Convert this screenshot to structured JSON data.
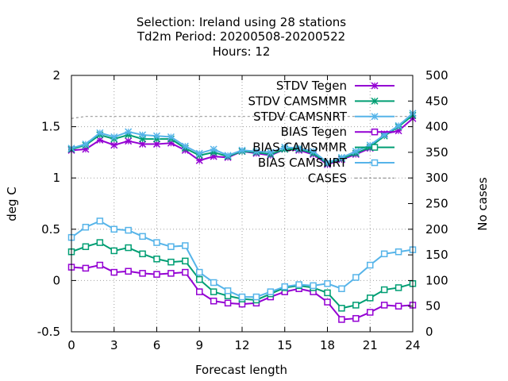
{
  "chart_data": {
    "type": "line",
    "title_lines": [
      "Selection: Ireland using    28 stations",
      "Td2m   Period: 20200508-20200522",
      "Hours:  12"
    ],
    "xlabel": "Forecast length",
    "ylabel": "deg C",
    "y2label": "No cases",
    "xlim": [
      0,
      24
    ],
    "ylim": [
      -0.5,
      2
    ],
    "y2lim": [
      0,
      500
    ],
    "xticks": [
      0,
      3,
      6,
      9,
      12,
      15,
      18,
      21,
      24
    ],
    "yticks": [
      -0.5,
      0,
      0.5,
      1,
      1.5,
      2
    ],
    "ytick_labels": [
      "-0.5",
      "0",
      "0.5",
      "1",
      "1.5",
      "2"
    ],
    "y2ticks": [
      0,
      50,
      100,
      150,
      200,
      250,
      300,
      350,
      400,
      450,
      500
    ],
    "grid": true,
    "legend_position": "top-right",
    "x": [
      0,
      1,
      2,
      3,
      4,
      5,
      6,
      7,
      8,
      9,
      10,
      11,
      12,
      13,
      14,
      15,
      16,
      17,
      18,
      19,
      20,
      21,
      22,
      23,
      24
    ],
    "series": [
      {
        "name": "STDV Tegen",
        "color": "#9400d3",
        "marker": "x",
        "axis": "y1",
        "values": [
          1.27,
          1.28,
          1.37,
          1.32,
          1.36,
          1.33,
          1.33,
          1.34,
          1.27,
          1.17,
          1.21,
          1.2,
          1.26,
          1.24,
          1.22,
          1.28,
          1.27,
          1.23,
          1.13,
          1.18,
          1.23,
          1.29,
          1.43,
          1.46,
          1.58
        ]
      },
      {
        "name": "STDV CAMSMMR",
        "color": "#009e73",
        "marker": "x",
        "axis": "y1",
        "values": [
          1.28,
          1.32,
          1.42,
          1.38,
          1.42,
          1.38,
          1.38,
          1.38,
          1.29,
          1.22,
          1.25,
          1.21,
          1.26,
          1.25,
          1.23,
          1.28,
          1.28,
          1.24,
          1.14,
          1.19,
          1.24,
          1.3,
          1.41,
          1.5,
          1.61
        ]
      },
      {
        "name": "STDV CAMSNRT",
        "color": "#56b4e9",
        "marker": "x",
        "axis": "y1",
        "values": [
          1.29,
          1.33,
          1.44,
          1.4,
          1.45,
          1.42,
          1.41,
          1.4,
          1.31,
          1.24,
          1.28,
          1.22,
          1.27,
          1.26,
          1.25,
          1.3,
          1.29,
          1.26,
          1.15,
          1.2,
          1.26,
          1.32,
          1.42,
          1.51,
          1.63
        ]
      },
      {
        "name": "BIAS Tegen",
        "color": "#9400d3",
        "marker": "square",
        "axis": "y1",
        "values": [
          0.13,
          0.12,
          0.15,
          0.08,
          0.09,
          0.07,
          0.06,
          0.07,
          0.08,
          -0.11,
          -0.2,
          -0.22,
          -0.23,
          -0.22,
          -0.16,
          -0.11,
          -0.08,
          -0.11,
          -0.21,
          -0.38,
          -0.37,
          -0.31,
          -0.24,
          -0.25,
          -0.24
        ]
      },
      {
        "name": "BIAS CAMSMMR",
        "color": "#009e73",
        "marker": "square",
        "axis": "y1",
        "values": [
          0.28,
          0.33,
          0.37,
          0.29,
          0.32,
          0.26,
          0.21,
          0.18,
          0.19,
          0.01,
          -0.11,
          -0.15,
          -0.18,
          -0.19,
          -0.13,
          -0.07,
          -0.05,
          -0.07,
          -0.12,
          -0.27,
          -0.24,
          -0.17,
          -0.09,
          -0.07,
          -0.03
        ]
      },
      {
        "name": "BIAS CAMSNRT",
        "color": "#56b4e9",
        "marker": "square",
        "axis": "y1",
        "values": [
          0.42,
          0.52,
          0.58,
          0.5,
          0.49,
          0.43,
          0.37,
          0.33,
          0.34,
          0.08,
          -0.02,
          -0.1,
          -0.16,
          -0.16,
          -0.11,
          -0.06,
          -0.04,
          -0.05,
          -0.03,
          -0.08,
          0.03,
          0.15,
          0.26,
          0.28,
          0.3
        ]
      },
      {
        "name": "CASES",
        "color": "#999999",
        "marker": "none",
        "dash": true,
        "axis": "y2",
        "values": [
          416,
          420,
          420,
          420,
          420,
          420,
          420,
          420,
          420,
          420,
          420,
          420,
          420,
          420,
          420,
          420,
          420,
          420,
          420,
          420,
          420,
          420,
          420,
          420,
          420
        ]
      }
    ]
  }
}
